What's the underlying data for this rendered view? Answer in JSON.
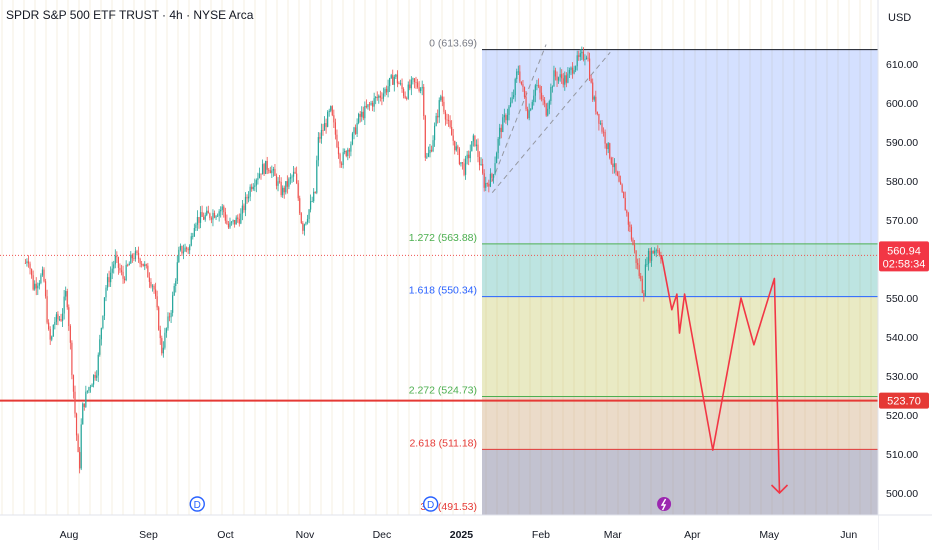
{
  "title": "SPDR S&P 500 ETF TRUST · 4h · NYSE Arca",
  "currency": "USD",
  "colors": {
    "up": "#26a69a",
    "down": "#ef5350",
    "support": "#e53935",
    "fib_blue": "#2962ff",
    "projection": "#f23645"
  },
  "current_price": {
    "value": "560.94",
    "countdown": "02:58:34"
  },
  "support_level": {
    "value": "523.70"
  },
  "chart_data": {
    "type": "candlestick",
    "y_ticks": [
      500,
      510,
      520,
      530,
      540,
      550,
      560,
      570,
      580,
      590,
      600,
      610
    ],
    "y_tick_labels": [
      "500.00",
      "510.00",
      "520.00",
      "530.00",
      "540.00",
      "550.00",
      "560.00",
      "570.00",
      "580.00",
      "590.00",
      "600.00",
      "610.00"
    ],
    "x_tick_labels": [
      "Aug",
      "Sep",
      "Oct",
      "Nov",
      "Dec",
      "2025",
      "Feb",
      "Mar",
      "Apr",
      "May",
      "Jun"
    ],
    "fib_levels": [
      {
        "label": "0 (613.69)",
        "price": 613.69,
        "color": "#787b86"
      },
      {
        "label": "1.272 (563.88)",
        "price": 563.88,
        "color": "#4caf50"
      },
      {
        "label": "1.618 (550.34)",
        "price": 550.34,
        "color": "#2962ff"
      },
      {
        "label": "2.272 (524.73)",
        "price": 524.73,
        "color": "#4caf50"
      },
      {
        "label": "2.618 (511.18)",
        "price": 511.18,
        "color": "#e53935"
      },
      {
        "label": "3.6 (491.53)",
        "price": 491.53,
        "color": "#e53935"
      }
    ],
    "price_path": [
      [
        "2024-07-15",
        559
      ],
      [
        "2024-07-16",
        561
      ],
      [
        "2024-07-18",
        553
      ],
      [
        "2024-07-22",
        556
      ],
      [
        "2024-07-24",
        541
      ],
      [
        "2024-07-25",
        538
      ],
      [
        "2024-07-26",
        544
      ],
      [
        "2024-07-29",
        545
      ],
      [
        "2024-07-31",
        552
      ],
      [
        "2024-08-01",
        543
      ],
      [
        "2024-08-02",
        533
      ],
      [
        "2024-08-05",
        505
      ],
      [
        "2024-08-06",
        521
      ],
      [
        "2024-08-08",
        526
      ],
      [
        "2024-08-12",
        532
      ],
      [
        "2024-08-15",
        552
      ],
      [
        "2024-08-19",
        560
      ],
      [
        "2024-08-22",
        555
      ],
      [
        "2024-08-26",
        561
      ],
      [
        "2024-08-29",
        560
      ],
      [
        "2024-09-03",
        553
      ],
      [
        "2024-09-05",
        543
      ],
      [
        "2024-09-06",
        536
      ],
      [
        "2024-09-10",
        548
      ],
      [
        "2024-09-13",
        562
      ],
      [
        "2024-09-17",
        563
      ],
      [
        "2024-09-19",
        570
      ],
      [
        "2024-09-24",
        571
      ],
      [
        "2024-09-30",
        573
      ],
      [
        "2024-10-02",
        568
      ],
      [
        "2024-10-07",
        571
      ],
      [
        "2024-10-11",
        579
      ],
      [
        "2024-10-15",
        583
      ],
      [
        "2024-10-18",
        584
      ],
      [
        "2024-10-23",
        577
      ],
      [
        "2024-10-28",
        582
      ],
      [
        "2024-10-31",
        568
      ],
      [
        "2024-11-05",
        577
      ],
      [
        "2024-11-06",
        590
      ],
      [
        "2024-11-11",
        598
      ],
      [
        "2024-11-15",
        585
      ],
      [
        "2024-11-19",
        590
      ],
      [
        "2024-11-22",
        596
      ],
      [
        "2024-11-27",
        600
      ],
      [
        "2024-12-02",
        603
      ],
      [
        "2024-12-06",
        607
      ],
      [
        "2024-12-10",
        602
      ],
      [
        "2024-12-13",
        605
      ],
      [
        "2024-12-17",
        604
      ],
      [
        "2024-12-18",
        585
      ],
      [
        "2024-12-20",
        588
      ],
      [
        "2024-12-24",
        602
      ],
      [
        "2024-12-27",
        594
      ],
      [
        "2024-12-31",
        586
      ],
      [
        "2025-01-02",
        583
      ],
      [
        "2025-01-06",
        591
      ],
      [
        "2025-01-10",
        579
      ],
      [
        "2025-01-13",
        581
      ],
      [
        "2025-01-16",
        593
      ],
      [
        "2025-01-21",
        601
      ],
      [
        "2025-01-23",
        609
      ],
      [
        "2025-01-27",
        597
      ],
      [
        "2025-01-30",
        605
      ],
      [
        "2025-02-03",
        598
      ],
      [
        "2025-02-06",
        607
      ],
      [
        "2025-02-11",
        606
      ],
      [
        "2025-02-14",
        610
      ],
      [
        "2025-02-19",
        613
      ],
      [
        "2025-02-21",
        602
      ],
      [
        "2025-02-25",
        593
      ],
      [
        "2025-03-03",
        580
      ],
      [
        "2025-03-06",
        573
      ],
      [
        "2025-03-10",
        560
      ],
      [
        "2025-03-13",
        551
      ],
      [
        "2025-03-14",
        560
      ],
      [
        "2025-03-18",
        563
      ],
      [
        "2025-03-20",
        561
      ]
    ],
    "projection_path": [
      [
        "2025-03-20",
        561
      ],
      [
        "2025-03-24",
        547
      ],
      [
        "2025-03-26",
        551
      ],
      [
        "2025-03-27",
        541
      ],
      [
        "2025-03-29",
        551
      ],
      [
        "2025-04-09",
        511
      ],
      [
        "2025-04-20",
        550
      ],
      [
        "2025-04-25",
        538
      ],
      [
        "2025-05-03",
        555
      ],
      [
        "2025-05-05",
        500
      ]
    ]
  }
}
